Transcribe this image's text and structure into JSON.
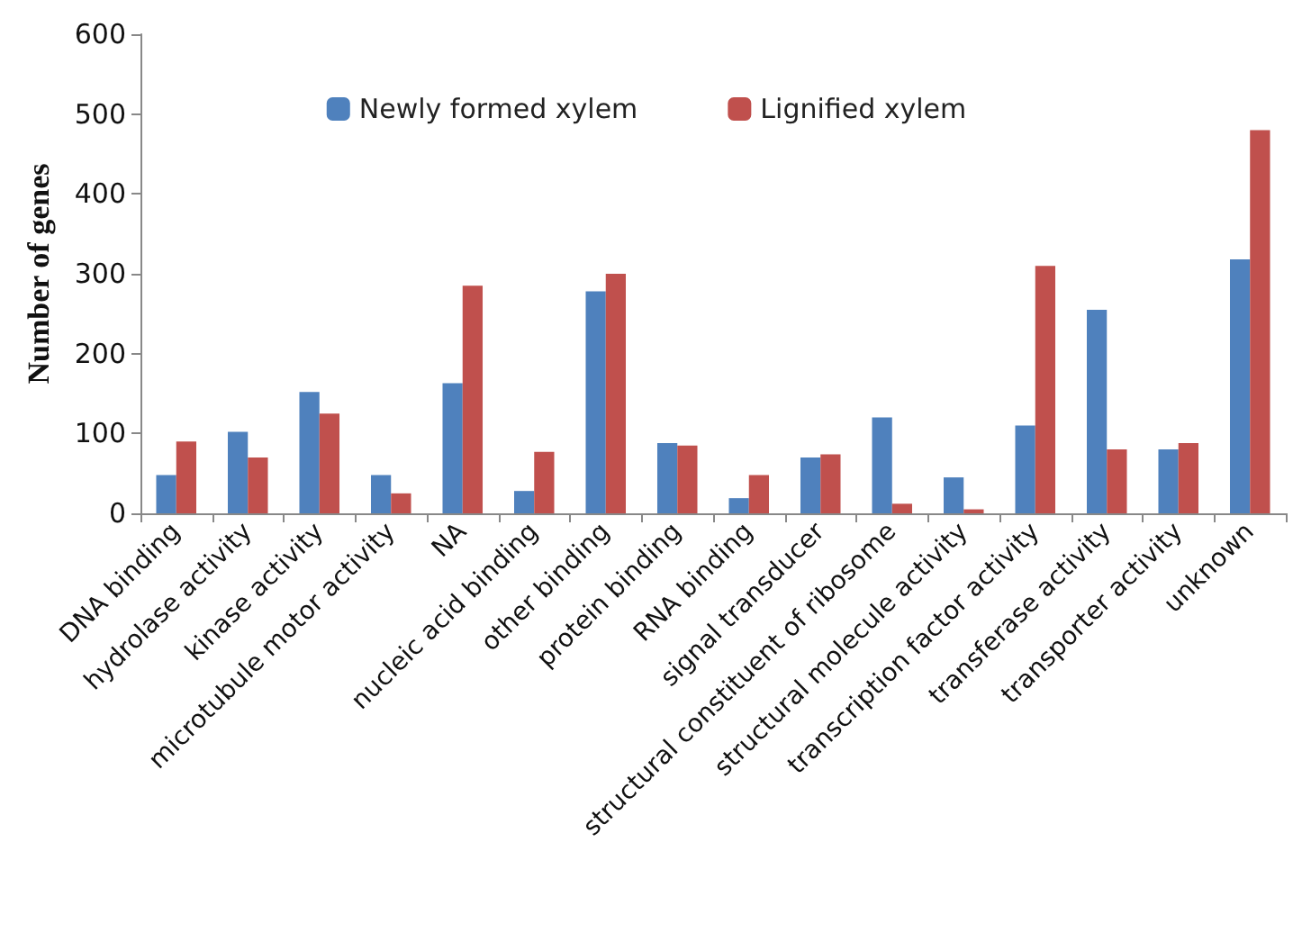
{
  "chart_data": {
    "type": "bar",
    "ylabel": "Number of genes",
    "categories": [
      "DNA binding",
      "hydrolase activity",
      "kinase activity",
      "microtubule motor activity",
      "NA",
      "nucleic acid binding",
      "other binding",
      "protein binding",
      "RNA binding",
      "signal transducer",
      "structural constituent of ribosome",
      "structural molecule activity",
      "transcription factor activity",
      "transferase activity",
      "transporter activity",
      "unknown"
    ],
    "series": [
      {
        "name": "Newly formed xylem",
        "color": "#4f81bd",
        "values": [
          48,
          102,
          152,
          48,
          163,
          28,
          278,
          88,
          19,
          70,
          120,
          45,
          110,
          255,
          80,
          318
        ]
      },
      {
        "name": "Lignified xylem",
        "color": "#c0504d",
        "values": [
          90,
          70,
          125,
          25,
          285,
          77,
          300,
          85,
          48,
          74,
          12,
          5,
          310,
          80,
          88,
          480
        ]
      }
    ],
    "ylim": [
      0,
      600
    ],
    "yticks": [
      0,
      100,
      200,
      300,
      400,
      500,
      600
    ],
    "grid": false,
    "legend": "top"
  }
}
